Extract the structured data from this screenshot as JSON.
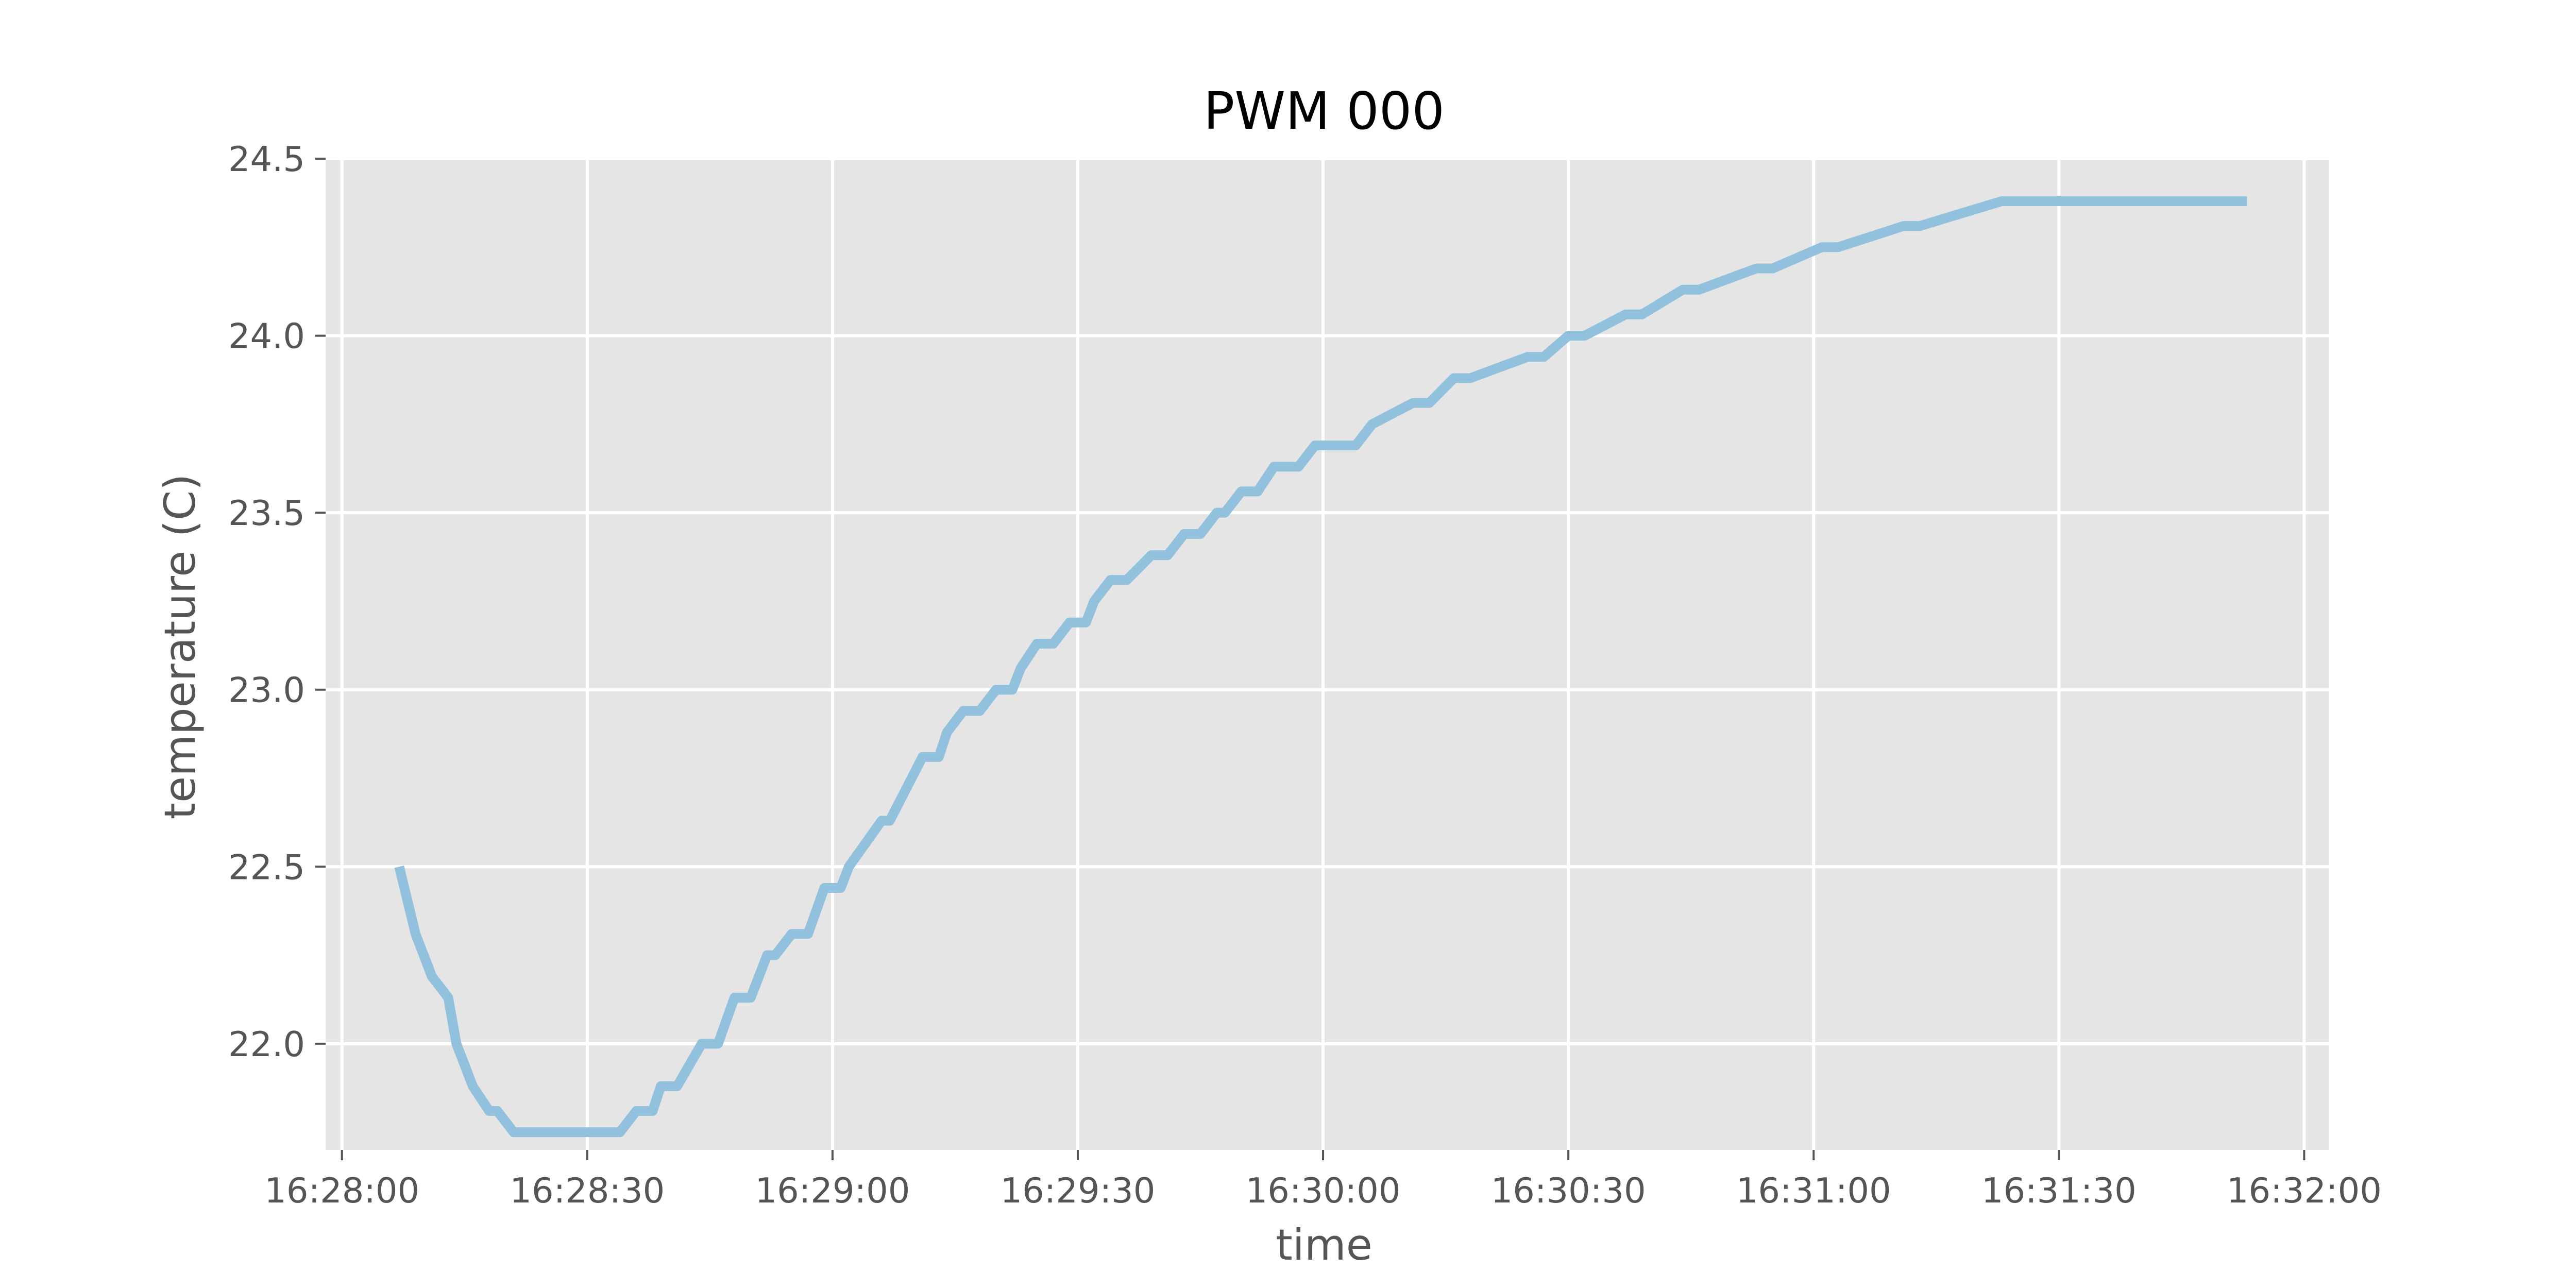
{
  "chart_data": {
    "type": "line",
    "title": "PWM 000",
    "xlabel": "time",
    "ylabel": "temperature (C)",
    "xlim": [
      "16:27:58",
      "16:32:03"
    ],
    "ylim": [
      21.7,
      24.5
    ],
    "x_ticks": [
      "16:28:00",
      "16:28:30",
      "16:29:00",
      "16:29:30",
      "16:30:00",
      "16:30:30",
      "16:31:00",
      "16:31:30",
      "16:32:00"
    ],
    "y_ticks": [
      22.0,
      22.5,
      23.0,
      23.5,
      24.0,
      24.5
    ],
    "y_tick_labels": [
      "22.0",
      "22.5",
      "23.0",
      "23.5",
      "24.0",
      "24.5"
    ],
    "grid": true,
    "style": {
      "background": "#e5e5e5",
      "grid_color": "#ffffff",
      "line_color": "#92c1dd"
    },
    "series": [
      {
        "x": [
          "16:28:07",
          "16:28:09",
          "16:28:11",
          "16:28:13",
          "16:28:14",
          "16:28:16",
          "16:28:18",
          "16:28:19",
          "16:28:21",
          "16:28:23",
          "16:28:28",
          "16:28:34",
          "16:28:36",
          "16:28:38",
          "16:28:39",
          "16:28:41",
          "16:28:44",
          "16:28:46",
          "16:28:48",
          "16:28:50",
          "16:28:52",
          "16:28:53",
          "16:28:55",
          "16:28:57",
          "16:28:59",
          "16:29:01",
          "16:29:02",
          "16:29:06",
          "16:29:07",
          "16:29:11",
          "16:29:13",
          "16:29:14",
          "16:29:16",
          "16:29:18",
          "16:29:20",
          "16:29:22",
          "16:29:23",
          "16:29:25",
          "16:29:27",
          "16:29:29",
          "16:29:31",
          "16:29:32",
          "16:29:34",
          "16:29:36",
          "16:29:39",
          "16:29:41",
          "16:29:43",
          "16:29:45",
          "16:29:47",
          "16:29:48",
          "16:29:50",
          "16:29:52",
          "16:29:54",
          "16:29:57",
          "16:29:59",
          "16:30:04",
          "16:30:06",
          "16:30:11",
          "16:30:13",
          "16:30:16",
          "16:30:18",
          "16:30:25",
          "16:30:27",
          "16:30:30",
          "16:30:32",
          "16:30:37",
          "16:30:39",
          "16:30:44",
          "16:30:46",
          "16:30:53",
          "16:30:55",
          "16:31:01",
          "16:31:03",
          "16:31:11",
          "16:31:13",
          "16:31:23",
          "16:31:25",
          "16:31:39",
          "16:31:41",
          "16:31:53"
        ],
        "y": [
          22.5,
          22.31,
          22.19,
          22.13,
          22.0,
          21.88,
          21.81,
          21.81,
          21.75,
          21.75,
          21.75,
          21.75,
          21.81,
          21.81,
          21.88,
          21.88,
          22.0,
          22.0,
          22.13,
          22.13,
          22.25,
          22.25,
          22.31,
          22.31,
          22.44,
          22.44,
          22.5,
          22.63,
          22.63,
          22.81,
          22.81,
          22.88,
          22.94,
          22.94,
          23.0,
          23.0,
          23.06,
          23.13,
          23.13,
          23.19,
          23.19,
          23.25,
          23.31,
          23.31,
          23.38,
          23.38,
          23.44,
          23.44,
          23.5,
          23.5,
          23.56,
          23.56,
          23.63,
          23.63,
          23.69,
          23.69,
          23.75,
          23.81,
          23.81,
          23.88,
          23.88,
          23.94,
          23.94,
          24.0,
          24.0,
          24.06,
          24.06,
          24.13,
          24.13,
          24.19,
          24.19,
          24.25,
          24.25,
          24.31,
          24.31,
          24.38,
          24.38,
          24.38,
          24.38,
          24.38
        ]
      }
    ]
  }
}
